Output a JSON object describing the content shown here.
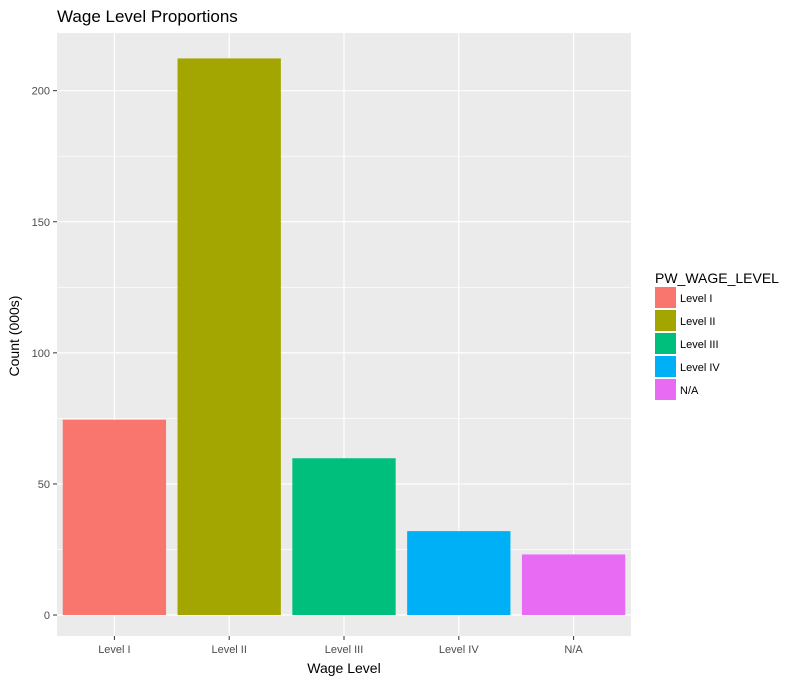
{
  "chart_data": {
    "type": "bar",
    "title": "Wage Level Proportions",
    "xlabel": "Wage Level",
    "ylabel": "Count (000s)",
    "categories": [
      "Level I",
      "Level II",
      "Level III",
      "Level IV",
      "N/A"
    ],
    "values": [
      74.5,
      212.3,
      59.8,
      32.0,
      23.1
    ],
    "colors": [
      "#F8766D",
      "#A3A500",
      "#00BF7D",
      "#00B0F6",
      "#E76BF3"
    ],
    "ylim": [
      -8,
      222
    ],
    "yticks": [
      0,
      50,
      100,
      150,
      200
    ],
    "grid": true,
    "legend": {
      "title": "PW_WAGE_LEVEL",
      "placement": "right",
      "items": [
        "Level I",
        "Level II",
        "Level III",
        "Level IV",
        "N/A"
      ]
    },
    "panel_background": "#EBEBEB",
    "gridline_color": "#FFFFFF"
  }
}
